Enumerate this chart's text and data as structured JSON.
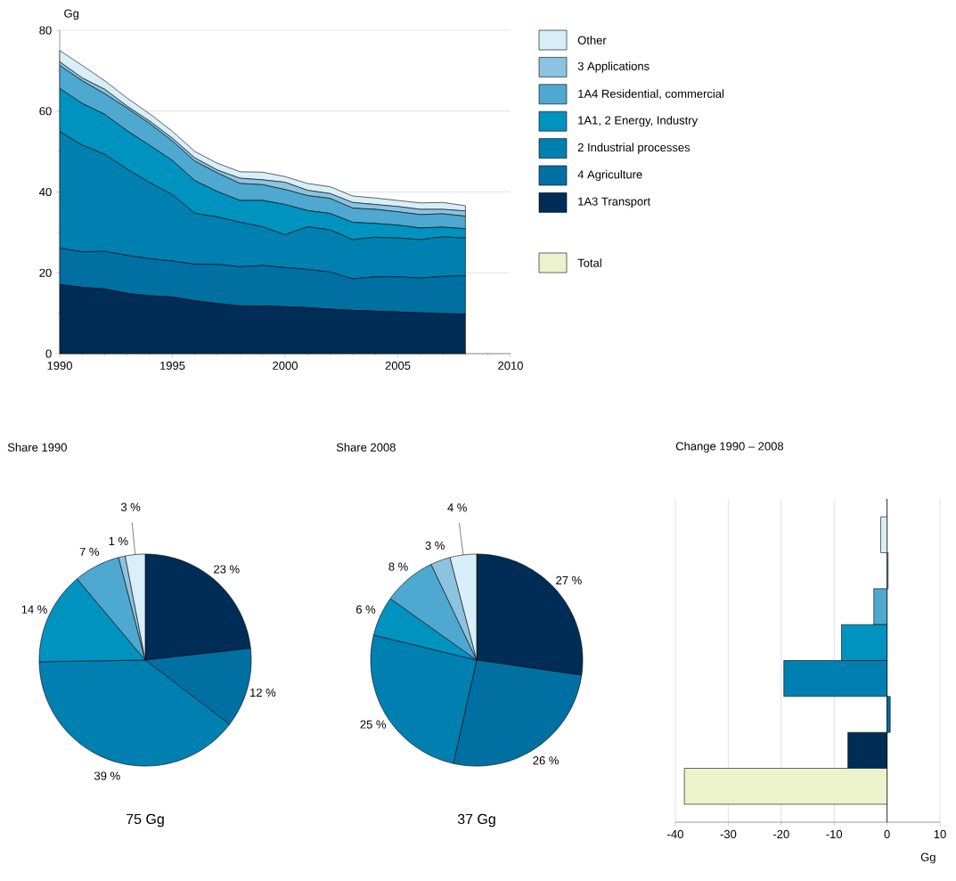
{
  "chart_data": [
    {
      "type": "area",
      "stacked": true,
      "ylabel": "Gg",
      "x": [
        1990,
        1991,
        1992,
        1993,
        1994,
        1995,
        1996,
        1997,
        1998,
        1999,
        2000,
        2001,
        2002,
        2003,
        2004,
        2005,
        2006,
        2007,
        2008
      ],
      "series": [
        {
          "name": "1A3 Transport",
          "color": "#002d56",
          "values": [
            17.1,
            16.4,
            16.0,
            14.9,
            14.3,
            14.0,
            13.1,
            12.4,
            11.8,
            11.8,
            11.6,
            11.4,
            11.0,
            10.7,
            10.5,
            10.3,
            10.1,
            9.9,
            9.8
          ]
        },
        {
          "name": "4 Agriculture",
          "color": "#0070a3",
          "values": [
            9.0,
            8.8,
            9.3,
            9.4,
            9.2,
            8.9,
            9.0,
            9.7,
            9.7,
            10.0,
            9.7,
            9.4,
            9.2,
            7.8,
            8.5,
            8.7,
            8.6,
            9.2,
            9.5
          ]
        },
        {
          "name": "2 Industrial processes",
          "color": "#0080b0",
          "values": [
            28.8,
            26.4,
            24.0,
            21.3,
            18.8,
            16.4,
            12.6,
            11.7,
            11.0,
            9.6,
            8.1,
            10.6,
            10.4,
            9.7,
            9.8,
            9.6,
            9.5,
            9.8,
            9.3
          ]
        },
        {
          "name": "1A1, 2 Energy, Industry",
          "color": "#0093c0",
          "values": [
            10.7,
            10.3,
            9.9,
            9.5,
            9.2,
            8.5,
            8.1,
            6.3,
            5.4,
            6.5,
            7.5,
            4.0,
            4.1,
            4.3,
            3.4,
            3.2,
            2.9,
            2.4,
            2.3
          ]
        },
        {
          "name": "1A4 Residential, commercial",
          "color": "#4fa8d0",
          "values": [
            5.7,
            5.6,
            5.1,
            5.6,
            5.4,
            4.8,
            4.8,
            4.6,
            4.2,
            3.9,
            3.7,
            3.7,
            3.7,
            3.5,
            3.5,
            3.3,
            3.3,
            3.3,
            3.1
          ]
        },
        {
          "name": "3 Applications",
          "color": "#8cc3e0",
          "values": [
            0.9,
            0.7,
            1.1,
            0.5,
            0.6,
            0.7,
            0.8,
            0.7,
            1.3,
            1.2,
            1.8,
            1.3,
            1.2,
            1.4,
            1.2,
            1.3,
            1.3,
            1.1,
            1.3
          ]
        },
        {
          "name": "Other",
          "color": "#d8eef8",
          "values": [
            2.8,
            3.1,
            2.1,
            2.0,
            1.8,
            1.7,
            1.6,
            1.7,
            1.6,
            1.9,
            1.4,
            1.7,
            1.7,
            1.6,
            1.6,
            1.5,
            1.6,
            1.7,
            1.3
          ]
        }
      ],
      "xlim": [
        1990,
        2010
      ],
      "ylim": [
        0,
        80
      ],
      "xticks": [
        1990,
        1995,
        2000,
        2005,
        2010
      ],
      "yticks": [
        0,
        20,
        40,
        60,
        80
      ],
      "grid": "y",
      "legend": "right"
    },
    {
      "type": "pie",
      "title": "Share 1990",
      "categories": [
        null,
        null,
        null,
        null,
        null,
        null,
        null
      ],
      "values": [
        23,
        12,
        39,
        14,
        7,
        1,
        3
      ],
      "colors": [
        "#002d56",
        "#0070a3",
        "#0080b0",
        "#0093c0",
        "#4fa8d0",
        "#8cc3e0",
        "#d8eef8"
      ],
      "value_labels": [
        "23 %",
        "12 %",
        "39 %",
        "14 %",
        "7 %",
        "1 %",
        "3 %"
      ],
      "annotations": [
        "75 Gg"
      ]
    },
    {
      "type": "pie",
      "title": "Share 2008",
      "categories": [
        null,
        null,
        null,
        null,
        null,
        null,
        null
      ],
      "values": [
        27,
        26,
        25,
        6,
        8,
        3,
        4
      ],
      "colors": [
        "#002d56",
        "#0070a3",
        "#0080b0",
        "#0093c0",
        "#4fa8d0",
        "#8cc3e0",
        "#d8eef8"
      ],
      "value_labels": [
        "27 %",
        "26 %",
        "25 %",
        "6 %",
        "8 %",
        "3 %",
        "4 %"
      ],
      "annotations": [
        "37 Gg"
      ]
    },
    {
      "type": "bar",
      "orientation": "horizontal",
      "title": "Change 1990 – 2008",
      "xlabel": "Gg",
      "categories": [
        null,
        null,
        null,
        null,
        null,
        null,
        null,
        null
      ],
      "values": [
        -1.2,
        0.2,
        -2.5,
        -8.6,
        -19.5,
        0.6,
        -7.4,
        -38.3
      ],
      "colors": [
        "#d8eef8",
        "#8cc3e0",
        "#4fa8d0",
        "#0093c0",
        "#0080b0",
        "#0070a3",
        "#002d56",
        "#ecf2cc"
      ],
      "xlim": [
        -40,
        10
      ],
      "xticks": [
        -40,
        -30,
        -20,
        -10,
        0,
        10
      ],
      "grid": "x",
      "annotations": [
        "Total"
      ]
    }
  ]
}
